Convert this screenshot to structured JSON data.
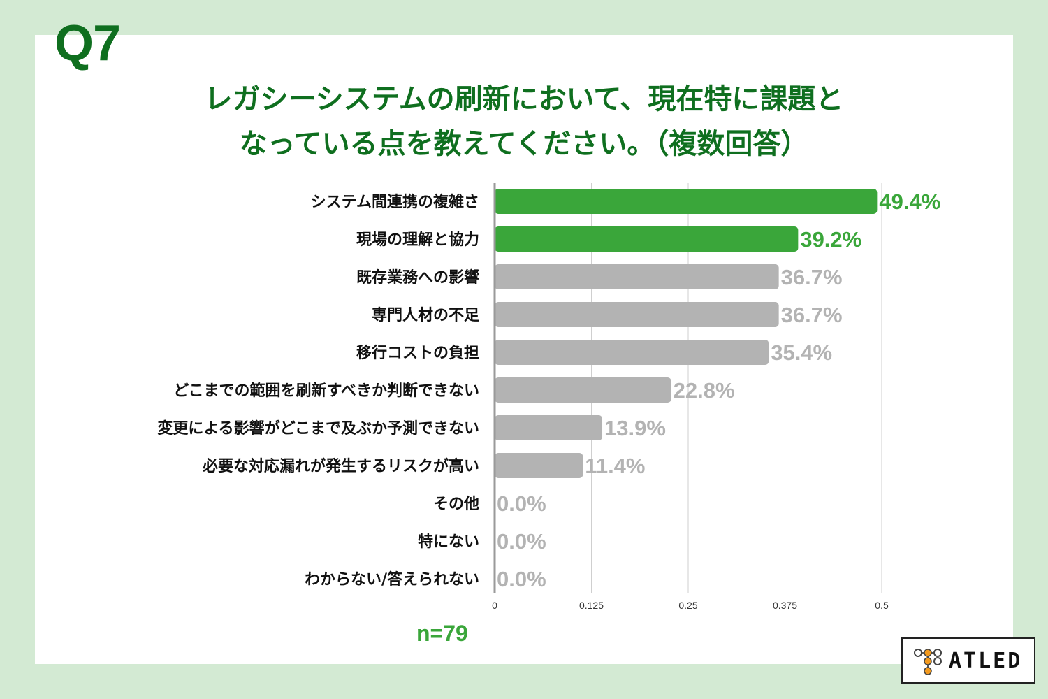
{
  "header": {
    "question_no": "Q7",
    "title_line1": "レガシーシステムの刷新において、現在特に課題と",
    "title_line2": "なっている点を教えてください。（複数回答）"
  },
  "sample": "n=79",
  "logo": {
    "text": "ATLED"
  },
  "colors": {
    "highlight": "#3aa63a",
    "normal": "#b3b3b3",
    "title": "#0f6f1f",
    "background": "#d3ead3"
  },
  "chart_data": {
    "type": "bar",
    "orientation": "horizontal",
    "categories": [
      "システム間連携の複雑さ",
      "現場の理解と協力",
      "既存業務への影響",
      "専門人材の不足",
      "移行コストの負担",
      "どこまでの範囲を刷新すべきか判断できない",
      "変更による影響がどこまで及ぶか予測できない",
      "必要な対応漏れが発生するリスクが高い",
      "その他",
      "特にない",
      "わからない/答えられない"
    ],
    "values": [
      0.494,
      0.392,
      0.367,
      0.367,
      0.354,
      0.228,
      0.139,
      0.114,
      0.0,
      0.0,
      0.0
    ],
    "value_labels": [
      "49.4%",
      "39.2%",
      "36.7%",
      "36.7%",
      "35.4%",
      "22.8%",
      "13.9%",
      "11.4%",
      "0.0%",
      "0.0%",
      "0.0%"
    ],
    "highlight": [
      true,
      true,
      false,
      false,
      false,
      false,
      false,
      false,
      false,
      false,
      false
    ],
    "xticks": [
      "0",
      "0.125",
      "0.25",
      "0.375",
      "0.5"
    ],
    "xtick_values": [
      0,
      0.125,
      0.25,
      0.375,
      0.5
    ],
    "xlim": [
      0,
      0.5
    ],
    "grid": true,
    "title": "レガシーシステムの刷新において、現在特に課題となっている点を教えてください。（複数回答）"
  }
}
